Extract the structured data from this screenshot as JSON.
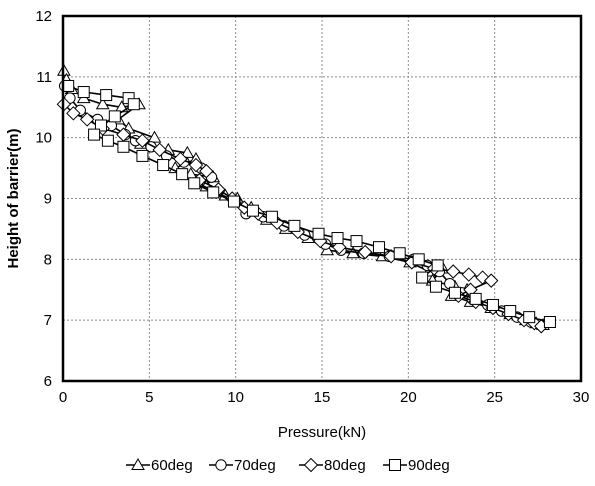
{
  "chart_data": {
    "type": "line",
    "title": "",
    "xlabel": "Pressure(kN)",
    "ylabel": "Height of barrier(m)",
    "xlim": [
      0,
      30
    ],
    "ylim": [
      6,
      12
    ],
    "x_ticks": [
      "0",
      "5",
      "10",
      "15",
      "20",
      "25",
      "30"
    ],
    "y_ticks": [
      "6",
      "7",
      "8",
      "9",
      "10",
      "11",
      "12"
    ],
    "grid": true,
    "legend_position": "bottom",
    "series": [
      {
        "name": "60deg",
        "marker": "triangle",
        "points": [
          [
            0.05,
            11.1
          ],
          [
            0.2,
            10.95
          ],
          [
            0.5,
            10.8
          ],
          [
            1.2,
            10.65
          ],
          [
            2.3,
            10.55
          ],
          [
            3.4,
            10.5
          ],
          [
            4.4,
            10.55
          ],
          [
            3.2,
            10.3
          ],
          [
            3.8,
            10.15
          ],
          [
            5.3,
            10.0
          ],
          [
            4.5,
            9.9
          ],
          [
            6.1,
            9.8
          ],
          [
            7.2,
            9.75
          ],
          [
            7.7,
            9.65
          ],
          [
            6.5,
            9.5
          ],
          [
            7.4,
            9.4
          ],
          [
            8.7,
            9.35
          ],
          [
            8.3,
            9.2
          ],
          [
            9.4,
            9.05
          ],
          [
            10.1,
            9.0
          ],
          [
            10.9,
            8.85
          ],
          [
            11.8,
            8.65
          ],
          [
            12.9,
            8.5
          ],
          [
            14.2,
            8.35
          ],
          [
            15.3,
            8.15
          ],
          [
            16.8,
            8.1
          ],
          [
            18.5,
            8.05
          ],
          [
            20.1,
            7.95
          ],
          [
            21.2,
            7.8
          ],
          [
            22.0,
            7.85
          ],
          [
            21.4,
            7.65
          ],
          [
            22.7,
            7.55
          ],
          [
            23.4,
            7.5
          ],
          [
            22.5,
            7.4
          ],
          [
            23.6,
            7.3
          ],
          [
            24.8,
            7.2
          ],
          [
            25.9,
            7.1
          ],
          [
            26.8,
            7.0
          ],
          [
            27.4,
            6.95
          ],
          [
            27.8,
            6.92
          ]
        ]
      },
      {
        "name": "70deg",
        "marker": "circle",
        "points": [
          [
            0.1,
            10.85
          ],
          [
            0.4,
            10.65
          ],
          [
            1.0,
            10.45
          ],
          [
            2.0,
            10.3
          ],
          [
            2.8,
            10.2
          ],
          [
            3.6,
            10.05
          ],
          [
            4.2,
            9.95
          ],
          [
            5.1,
            9.85
          ],
          [
            6.0,
            9.7
          ],
          [
            7.0,
            9.6
          ],
          [
            8.0,
            9.5
          ],
          [
            8.6,
            9.35
          ],
          [
            7.8,
            9.25
          ],
          [
            8.9,
            9.1
          ],
          [
            10.0,
            8.95
          ],
          [
            10.6,
            8.75
          ],
          [
            11.6,
            8.7
          ],
          [
            12.8,
            8.55
          ],
          [
            14.0,
            8.4
          ],
          [
            15.2,
            8.25
          ],
          [
            16.1,
            8.15
          ],
          [
            17.4,
            8.1
          ],
          [
            18.9,
            8.05
          ],
          [
            20.3,
            8.0
          ],
          [
            21.1,
            7.9
          ],
          [
            21.8,
            7.8
          ],
          [
            22.4,
            7.6
          ],
          [
            23.1,
            7.45
          ],
          [
            23.7,
            7.35
          ],
          [
            24.6,
            7.25
          ],
          [
            25.4,
            7.15
          ],
          [
            26.3,
            7.05
          ],
          [
            27.1,
            6.97
          ],
          [
            27.6,
            6.93
          ]
        ]
      },
      {
        "name": "80deg",
        "marker": "diamond",
        "points": [
          [
            0.05,
            10.55
          ],
          [
            0.6,
            10.4
          ],
          [
            1.4,
            10.3
          ],
          [
            2.3,
            10.15
          ],
          [
            3.5,
            10.05
          ],
          [
            4.6,
            9.95
          ],
          [
            5.6,
            9.8
          ],
          [
            6.8,
            9.65
          ],
          [
            7.7,
            9.55
          ],
          [
            8.3,
            9.45
          ],
          [
            7.9,
            9.3
          ],
          [
            9.0,
            9.15
          ],
          [
            9.8,
            9.0
          ],
          [
            10.5,
            8.85
          ],
          [
            11.3,
            8.75
          ],
          [
            12.4,
            8.6
          ],
          [
            13.6,
            8.45
          ],
          [
            14.9,
            8.3
          ],
          [
            16.0,
            8.2
          ],
          [
            17.5,
            8.12
          ],
          [
            19.0,
            8.05
          ],
          [
            20.2,
            7.95
          ],
          [
            21.5,
            7.85
          ],
          [
            22.6,
            7.8
          ],
          [
            23.5,
            7.75
          ],
          [
            24.3,
            7.7
          ],
          [
            24.8,
            7.65
          ],
          [
            23.6,
            7.5
          ],
          [
            22.9,
            7.4
          ],
          [
            23.9,
            7.3
          ],
          [
            24.9,
            7.2
          ],
          [
            25.8,
            7.1
          ],
          [
            26.7,
            7.0
          ],
          [
            27.3,
            6.95
          ],
          [
            27.7,
            6.9
          ]
        ]
      },
      {
        "name": "90deg",
        "marker": "square",
        "points": [
          [
            0.3,
            10.85
          ],
          [
            1.2,
            10.75
          ],
          [
            2.5,
            10.7
          ],
          [
            3.8,
            10.65
          ],
          [
            4.1,
            10.55
          ],
          [
            3.0,
            10.35
          ],
          [
            2.2,
            10.2
          ],
          [
            1.8,
            10.05
          ],
          [
            2.6,
            9.95
          ],
          [
            3.5,
            9.85
          ],
          [
            4.6,
            9.7
          ],
          [
            5.8,
            9.55
          ],
          [
            6.9,
            9.4
          ],
          [
            7.6,
            9.25
          ],
          [
            8.7,
            9.1
          ],
          [
            9.9,
            8.95
          ],
          [
            11.0,
            8.8
          ],
          [
            12.1,
            8.7
          ],
          [
            13.4,
            8.55
          ],
          [
            14.8,
            8.42
          ],
          [
            15.9,
            8.35
          ],
          [
            17.0,
            8.3
          ],
          [
            18.3,
            8.2
          ],
          [
            19.5,
            8.1
          ],
          [
            20.6,
            8.0
          ],
          [
            21.7,
            7.9
          ],
          [
            20.8,
            7.7
          ],
          [
            21.6,
            7.55
          ],
          [
            22.7,
            7.45
          ],
          [
            23.9,
            7.35
          ],
          [
            24.9,
            7.25
          ],
          [
            25.9,
            7.15
          ],
          [
            27.0,
            7.05
          ],
          [
            28.2,
            6.97
          ]
        ]
      }
    ]
  }
}
